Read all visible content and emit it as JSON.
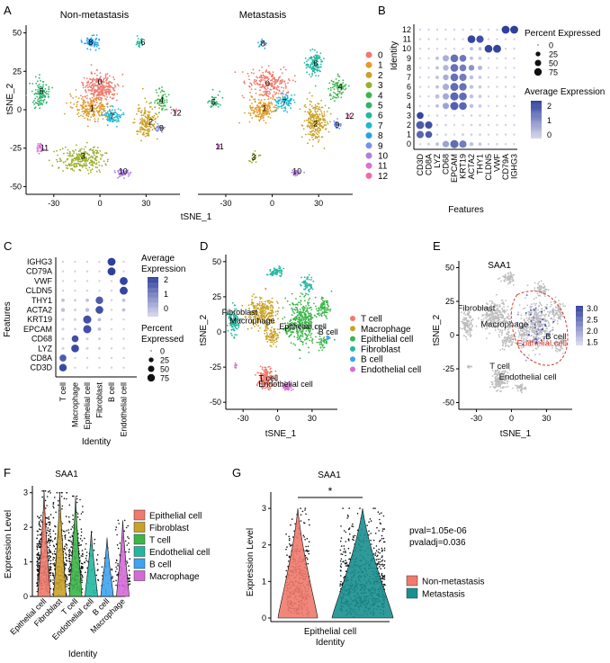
{
  "colors": {
    "c0": "#f07a6d",
    "c1": "#e09b2a",
    "c2": "#c9a227",
    "c3": "#9bb02a",
    "c4": "#3cb54a",
    "c5": "#2fb36c",
    "c6": "#22b8a0",
    "c7": "#1fb7d2",
    "c8": "#27a2e8",
    "c9": "#7b8ff0",
    "c10": "#b07ce6",
    "c11": "#e26bd8",
    "c12": "#f06aa8",
    "tcell": "#f07a6d",
    "macro": "#c9a227",
    "epi": "#3cb54a",
    "fib": "#22b8a0",
    "bcell": "#3ea3f0",
    "endo": "#d56ad8",
    "dot_low": "#dcdcef",
    "dot_high": "#2e3f9c",
    "gray": "#bdbdbd",
    "nonmet": "#f07a6d",
    "met": "#1a8f8f",
    "dash": "#d63a2c"
  },
  "panels": {
    "A": {
      "letter": "A",
      "title_left": "Non-metastasis",
      "title_right": "Metastasis",
      "xlabel": "tSNE_1",
      "ylabel": "tSNE_2",
      "legend": [
        "0",
        "1",
        "2",
        "3",
        "4",
        "5",
        "6",
        "7",
        "8",
        "9",
        "10",
        "11",
        "12"
      ]
    },
    "B": {
      "letter": "B",
      "ylabel": "Identity",
      "xlabel": "Features",
      "legend_pct_title": "Percent Expressed",
      "pct_ticks": [
        "0",
        "25",
        "50",
        "75"
      ],
      "legend_avg_title": "Average Expression",
      "avg_ticks": [
        "2",
        "1",
        "0"
      ]
    },
    "C": {
      "letter": "C",
      "ylabel": "Features",
      "xlabel": "Identity",
      "legend_avg_title_1": "Average",
      "legend_avg_title_2": "Expression",
      "avg_ticks": [
        "2",
        "1",
        "0"
      ],
      "legend_pct_title_1": "Percent",
      "legend_pct_title_2": "Expressed",
      "pct_ticks": [
        "0",
        "25",
        "50",
        "75"
      ]
    },
    "D": {
      "letter": "D",
      "xlabel": "tSNE_1",
      "ylabel": "tSNE_2",
      "legend": [
        "T cell",
        "Macrophage",
        "Epithelial cell",
        "Fibroblast",
        "B cell",
        "Endothelial cell"
      ]
    },
    "E": {
      "letter": "E",
      "title": "SAA1",
      "xlabel": "tSNE_1",
      "ylabel": "tSNE_2",
      "labels": [
        "Fibroblast",
        "Macrophage",
        "B cell",
        "Epithelial cell",
        "T cell",
        "Endothelial cell"
      ],
      "scale_ticks": [
        "3.0",
        "2.5",
        "2.0",
        "1.5"
      ]
    },
    "F": {
      "letter": "F",
      "title": "SAA1",
      "ylabel": "Expression Level",
      "xlabel": "Identity",
      "legend": [
        "Epithelial cell",
        "Fibroblast",
        "T cell",
        "Endothelial cell",
        "B cell",
        "Macrophage"
      ]
    },
    "G": {
      "letter": "G",
      "title": "SAA1",
      "ylabel": "Expression Level",
      "xlabel": "Identity",
      "sig": "*",
      "pval": "pval=1.05e-06",
      "pvaladj": "pvaladj=0.036",
      "legend": [
        "Non-metastasis",
        "Metastasis"
      ]
    }
  },
  "chart_data": [
    {
      "type": "scatter",
      "panel": "A-left",
      "title": "Non-metastasis",
      "xlabel": "tSNE_1",
      "ylabel": "tSNE_2",
      "xticks": [
        "-30",
        "0",
        "30"
      ],
      "yticks": [
        "50",
        "25",
        "0",
        "-25",
        "-50"
      ],
      "xlim": [
        -48,
        52
      ],
      "ylim": [
        -55,
        55
      ],
      "cluster_labels": [
        {
          "label": "0",
          "x": 0,
          "y": 18
        },
        {
          "label": "1",
          "x": -5,
          "y": 1
        },
        {
          "label": "2",
          "x": 33,
          "y": -8
        },
        {
          "label": "3",
          "x": -11,
          "y": -30
        },
        {
          "label": "4",
          "x": 40,
          "y": 6
        },
        {
          "label": "5",
          "x": -38,
          "y": 12
        },
        {
          "label": "6",
          "x": 28,
          "y": 44
        },
        {
          "label": "7",
          "x": 8,
          "y": -4
        },
        {
          "label": "8",
          "x": -6,
          "y": 44
        },
        {
          "label": "9",
          "x": 40,
          "y": -12
        },
        {
          "label": "10",
          "x": 15,
          "y": -40
        },
        {
          "label": "11",
          "x": -36,
          "y": -25
        },
        {
          "label": "12",
          "x": 50,
          "y": -2
        }
      ]
    },
    {
      "type": "scatter",
      "panel": "A-right",
      "title": "Metastasis",
      "xlabel": "tSNE_1",
      "xticks": [
        "-30",
        "0",
        "30"
      ],
      "xlim": [
        -48,
        52
      ],
      "ylim": [
        -55,
        55
      ],
      "cluster_labels": [
        {
          "label": "0",
          "x": -3,
          "y": 17
        },
        {
          "label": "1",
          "x": -5,
          "y": 1
        },
        {
          "label": "2",
          "x": 28,
          "y": -9
        },
        {
          "label": "3",
          "x": -12,
          "y": -31
        },
        {
          "label": "4",
          "x": 44,
          "y": 15
        },
        {
          "label": "5",
          "x": -38,
          "y": 5
        },
        {
          "label": "6",
          "x": 28,
          "y": 30
        },
        {
          "label": "7",
          "x": 8,
          "y": 5
        },
        {
          "label": "8",
          "x": -6,
          "y": 43
        },
        {
          "label": "9",
          "x": 42,
          "y": -10
        },
        {
          "label": "10",
          "x": 16,
          "y": -40
        },
        {
          "label": "11",
          "x": -34,
          "y": -24
        },
        {
          "label": "12",
          "x": 50,
          "y": -4
        }
      ]
    },
    {
      "type": "dot",
      "panel": "B",
      "features": [
        "CD3D",
        "CD8A",
        "LYZ",
        "CD68",
        "EPCAM",
        "KRT19",
        "ACTA2",
        "THY1",
        "CLDN5",
        "VWF",
        "CD79A",
        "IGHG3"
      ],
      "identities": [
        "0",
        "1",
        "2",
        "3",
        "4",
        "5",
        "6",
        "7",
        "8",
        "9",
        "10",
        "11",
        "12"
      ],
      "pct_ticks": [
        0,
        25,
        50,
        75
      ],
      "avg_range": [
        -0.5,
        2.3
      ],
      "pct": [
        [
          2,
          5,
          10,
          55,
          90,
          70,
          15,
          10,
          2,
          3,
          2,
          2
        ],
        [
          70,
          60,
          3,
          3,
          2,
          5,
          3,
          3,
          2,
          2,
          2,
          2
        ],
        [
          85,
          70,
          3,
          3,
          2,
          2,
          3,
          3,
          2,
          2,
          2,
          2
        ],
        [
          60,
          2,
          3,
          3,
          2,
          2,
          3,
          3,
          2,
          2,
          2,
          2
        ],
        [
          2,
          2,
          10,
          50,
          90,
          80,
          15,
          10,
          2,
          3,
          2,
          2
        ],
        [
          2,
          2,
          20,
          50,
          90,
          80,
          15,
          10,
          2,
          2,
          2,
          2
        ],
        [
          2,
          2,
          10,
          50,
          85,
          75,
          15,
          10,
          2,
          2,
          2,
          2
        ],
        [
          2,
          2,
          10,
          40,
          80,
          70,
          15,
          10,
          2,
          2,
          2,
          2
        ],
        [
          2,
          2,
          10,
          40,
          80,
          60,
          40,
          20,
          2,
          2,
          2,
          2
        ],
        [
          2,
          2,
          10,
          50,
          80,
          60,
          10,
          10,
          2,
          2,
          2,
          2
        ],
        [
          2,
          2,
          2,
          2,
          2,
          2,
          10,
          10,
          80,
          85,
          2,
          2
        ],
        [
          2,
          2,
          2,
          2,
          2,
          2,
          80,
          70,
          2,
          2,
          2,
          2
        ],
        [
          2,
          2,
          2,
          2,
          2,
          2,
          2,
          2,
          2,
          2,
          85,
          85
        ]
      ],
      "avg": [
        [
          -0.3,
          -0.3,
          0,
          0.5,
          1.5,
          1.2,
          0,
          -0.2,
          -0.3,
          -0.3,
          -0.3,
          -0.3
        ],
        [
          1.6,
          1.8,
          -0.3,
          -0.3,
          -0.4,
          -0.3,
          -0.3,
          -0.3,
          -0.3,
          -0.3,
          -0.3,
          -0.3
        ],
        [
          1.8,
          2.0,
          -0.3,
          -0.3,
          -0.4,
          -0.3,
          -0.3,
          -0.3,
          -0.3,
          -0.3,
          -0.3,
          -0.3
        ],
        [
          2.2,
          -0.3,
          -0.3,
          -0.3,
          -0.4,
          -0.3,
          -0.3,
          -0.3,
          -0.3,
          -0.3,
          -0.3,
          -0.3
        ],
        [
          -0.3,
          -0.3,
          0,
          0.5,
          1.7,
          1.6,
          0,
          -0.2,
          -0.3,
          -0.3,
          -0.3,
          -0.3
        ],
        [
          -0.3,
          -0.3,
          0,
          0.4,
          1.6,
          1.5,
          0,
          -0.2,
          -0.3,
          -0.3,
          -0.3,
          -0.3
        ],
        [
          -0.3,
          -0.3,
          0,
          0.3,
          1.5,
          1.4,
          0,
          -0.2,
          -0.3,
          -0.3,
          -0.3,
          -0.3
        ],
        [
          -0.3,
          -0.3,
          0,
          0.3,
          1.4,
          1.2,
          0,
          -0.2,
          -0.3,
          -0.3,
          -0.3,
          -0.3
        ],
        [
          -0.3,
          -0.3,
          0,
          0.2,
          1.4,
          1.2,
          0.8,
          0.2,
          -0.3,
          -0.3,
          -0.3,
          -0.3
        ],
        [
          -0.3,
          -0.3,
          0,
          0.3,
          1.4,
          1.3,
          0,
          -0.2,
          -0.3,
          -0.3,
          -0.3,
          -0.3
        ],
        [
          -0.3,
          -0.3,
          -0.3,
          -0.3,
          -0.3,
          -0.3,
          0,
          0,
          2.2,
          2.2,
          -0.3,
          -0.3
        ],
        [
          -0.3,
          -0.3,
          -0.3,
          -0.3,
          -0.3,
          -0.3,
          2.2,
          2.0,
          -0.3,
          -0.3,
          -0.3,
          -0.3
        ],
        [
          -0.3,
          -0.3,
          -0.3,
          -0.3,
          -0.3,
          -0.3,
          -0.3,
          -0.3,
          -0.3,
          -0.3,
          2.3,
          2.3
        ]
      ]
    },
    {
      "type": "dot",
      "panel": "C",
      "features_top_to_bottom": [
        "IGHG3",
        "CD79A",
        "VWF",
        "CLDN5",
        "THY1",
        "ACTA2",
        "KRT19",
        "EPCAM",
        "CD68",
        "LYZ",
        "CD8A",
        "CD3D"
      ],
      "identities": [
        "T cell",
        "Macrophage",
        "Epithelial cell",
        "Fibroblast",
        "B cell",
        "Endothelial cell"
      ],
      "pct": [
        [
          2,
          2,
          2,
          2,
          85,
          2
        ],
        [
          2,
          2,
          2,
          2,
          85,
          2
        ],
        [
          2,
          2,
          2,
          2,
          2,
          85
        ],
        [
          2,
          2,
          2,
          2,
          2,
          85
        ],
        [
          10,
          5,
          10,
          75,
          2,
          10
        ],
        [
          15,
          5,
          15,
          80,
          2,
          10
        ],
        [
          5,
          5,
          90,
          10,
          2,
          2
        ],
        [
          5,
          5,
          90,
          10,
          2,
          2
        ],
        [
          5,
          60,
          5,
          5,
          2,
          2
        ],
        [
          5,
          80,
          5,
          5,
          2,
          2
        ],
        [
          60,
          2,
          2,
          2,
          2,
          2
        ],
        [
          75,
          2,
          2,
          2,
          2,
          2
        ]
      ],
      "avg": [
        [
          -0.3,
          -0.3,
          -0.3,
          -0.3,
          2.3,
          -0.3
        ],
        [
          -0.3,
          -0.3,
          -0.3,
          -0.3,
          2.3,
          -0.3
        ],
        [
          -0.3,
          -0.3,
          -0.3,
          -0.3,
          -0.3,
          2.2
        ],
        [
          -0.3,
          -0.3,
          -0.3,
          -0.3,
          -0.3,
          2.2
        ],
        [
          0,
          -0.3,
          0,
          1.8,
          -0.3,
          0
        ],
        [
          0,
          -0.3,
          0,
          2.0,
          -0.3,
          0
        ],
        [
          -0.3,
          -0.3,
          2.0,
          0,
          -0.3,
          -0.3
        ],
        [
          -0.3,
          -0.3,
          2.0,
          0,
          -0.3,
          -0.3
        ],
        [
          -0.3,
          2.0,
          -0.3,
          -0.3,
          -0.3,
          -0.3
        ],
        [
          -0.3,
          2.1,
          -0.3,
          -0.3,
          -0.3,
          -0.3
        ],
        [
          1.8,
          -0.3,
          -0.3,
          -0.3,
          -0.3,
          -0.3
        ],
        [
          2.1,
          -0.3,
          -0.3,
          -0.3,
          -0.3,
          -0.3
        ]
      ]
    },
    {
      "type": "scatter",
      "panel": "D",
      "xlabel": "tSNE_1",
      "ylabel": "tSNE_2",
      "xticks": [
        "-30",
        "0",
        "30"
      ],
      "yticks": [
        "50",
        "25",
        "0",
        "-25",
        "-50"
      ],
      "xlim": [
        -45,
        52
      ],
      "ylim": [
        -55,
        55
      ],
      "labels": [
        {
          "label": "Fibroblast",
          "x": -33,
          "y": 12
        },
        {
          "label": "Macrophage",
          "x": -22,
          "y": 6
        },
        {
          "label": "Epithelial cell",
          "x": 22,
          "y": 2
        },
        {
          "label": "B cell",
          "x": 44,
          "y": -2
        },
        {
          "label": "T cell",
          "x": -8,
          "y": -35
        },
        {
          "label": "Endothelial cell",
          "x": 7,
          "y": -39
        }
      ]
    },
    {
      "type": "scatter",
      "panel": "E",
      "title": "SAA1",
      "xlabel": "tSNE_1",
      "ylabel": "tSNE_2",
      "xticks": [
        "-30",
        "0",
        "30"
      ],
      "yticks": [
        "50",
        "25",
        "0",
        "-25",
        "-50"
      ],
      "xlim": [
        -45,
        52
      ],
      "ylim": [
        -55,
        55
      ],
      "color_range": [
        1.3,
        3.1
      ]
    },
    {
      "type": "violin",
      "panel": "F",
      "title": "SAA1",
      "categories": [
        "Epithelial cell",
        "Fibroblast",
        "T cell",
        "Endothelial cell",
        "B cell",
        "Macrophage"
      ],
      "yticks": [
        0,
        1,
        2,
        3
      ],
      "ylim": [
        0,
        3.2
      ],
      "max_values": [
        3.05,
        3.0,
        2.9,
        1.9,
        1.7,
        2.2
      ]
    },
    {
      "type": "violin",
      "panel": "G",
      "title": "SAA1",
      "categories": [
        "Epithelial cell"
      ],
      "groups": [
        "Non-metastasis",
        "Metastasis"
      ],
      "yticks": [
        0,
        1,
        2,
        3
      ],
      "ylim": [
        0,
        3.2
      ],
      "pval": 1.05e-06,
      "pvaladj": 0.036
    }
  ]
}
